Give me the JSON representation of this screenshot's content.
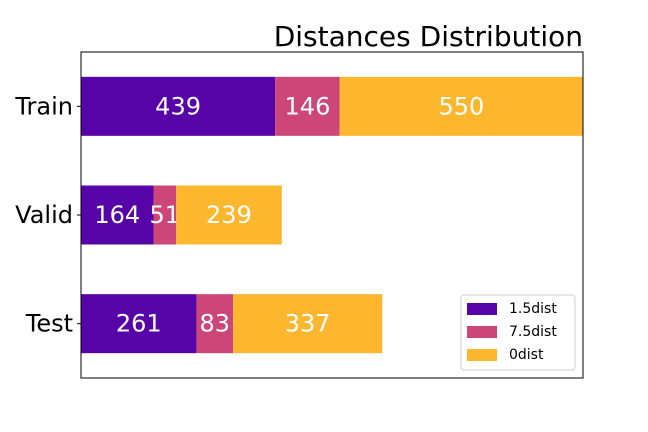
{
  "chart_data": {
    "type": "bar",
    "orientation": "horizontal",
    "stacked": true,
    "title": "Distances Distribution",
    "xlabel": "",
    "ylabel": "",
    "categories": [
      "Train",
      "Valid",
      "Test"
    ],
    "series": [
      {
        "name": "1.5dist",
        "values": [
          439,
          164,
          261
        ],
        "color": "#5603a8"
      },
      {
        "name": "7.5dist",
        "values": [
          146,
          51,
          83
        ],
        "color": "#cc4778"
      },
      {
        "name": "0dist",
        "values": [
          550,
          239,
          337
        ],
        "color": "#fdb72f"
      }
    ],
    "xlim": [
      0,
      1135
    ],
    "grid": false,
    "legend": "lower-right"
  }
}
